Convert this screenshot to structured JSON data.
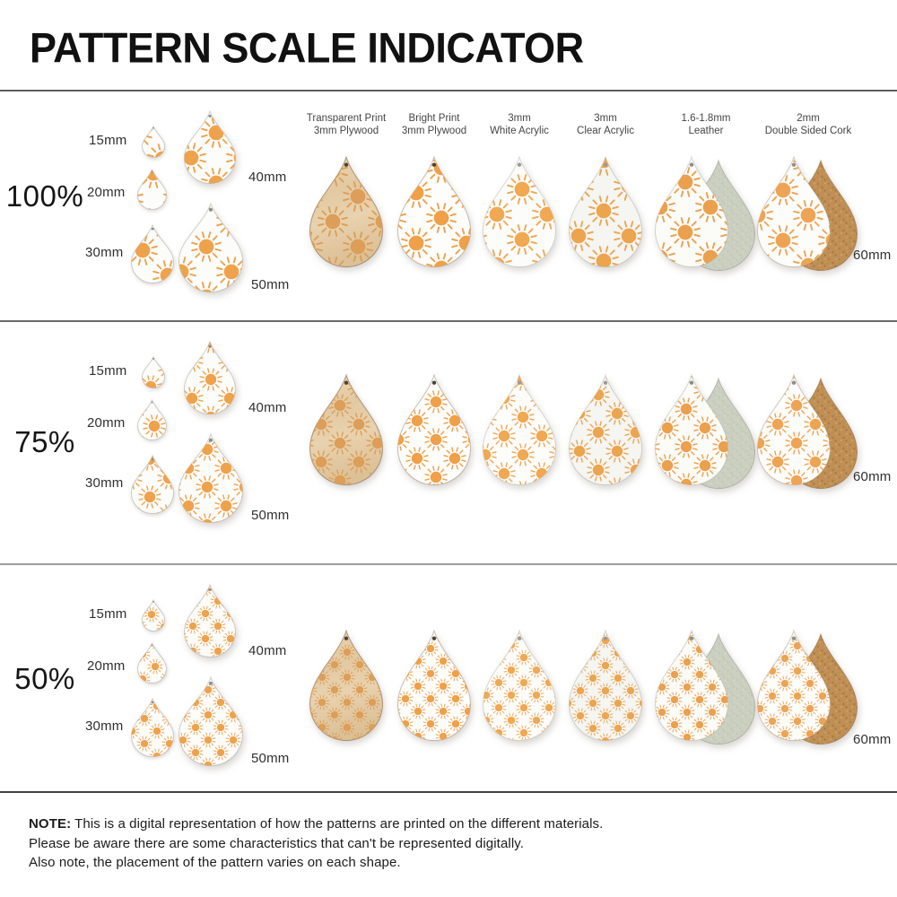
{
  "title": "PATTERN SCALE INDICATOR",
  "rows": [
    {
      "scale": "100%",
      "factor": 1
    },
    {
      "scale": "75%",
      "factor": 0.75
    },
    {
      "scale": "50%",
      "factor": 0.5
    }
  ],
  "size_labels": [
    "15mm",
    "20mm",
    "30mm",
    "40mm",
    "50mm"
  ],
  "large_size_label": "60mm",
  "materials": [
    {
      "line1": "Transparent Print",
      "line2": "3mm Plywood"
    },
    {
      "line1": "Bright Print",
      "line2": "3mm Plywood"
    },
    {
      "line1": "3mm",
      "line2": "White Acrylic"
    },
    {
      "line1": "3mm",
      "line2": "Clear Acrylic"
    },
    {
      "line1": "1.6-1.8mm",
      "line2": "Leather"
    },
    {
      "line1": "2mm",
      "line2": "Double Sided Cork"
    }
  ],
  "note": {
    "label": "NOTE:",
    "lines": [
      "This is a digital representation of how the patterns are printed on the different materials.",
      "Please be aware there are some characteristics that can't be represented digitally.",
      "Also note, the placement of the pattern varies on each shape."
    ]
  },
  "colors": {
    "sun_orange_bright": "#EFA24C",
    "sun_orange_on_wood": "#DC9E58",
    "plywood_tan": "#E6CFAC",
    "leather_back_sage": "#CBCFC0",
    "cork_back_brown": "#C08F55",
    "blank_white": "#FCFCFB"
  }
}
